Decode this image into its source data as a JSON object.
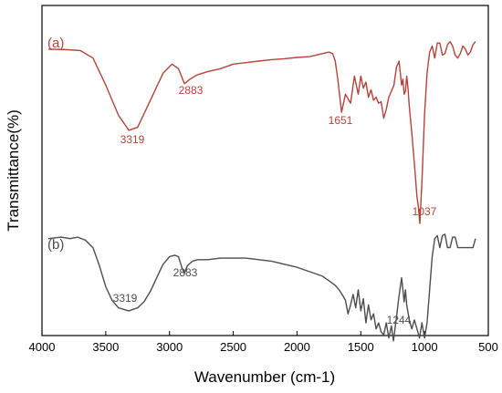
{
  "chart_data": {
    "type": "line",
    "title": "",
    "xlabel": "Wavenumber (cm-1)",
    "ylabel": "Transmittance(%)",
    "xlim": [
      4000,
      500
    ],
    "x_reversed": true,
    "x_ticks": [
      4000,
      3500,
      3000,
      2500,
      2000,
      1500,
      1000,
      500
    ],
    "y_ticks": [],
    "ylim": [
      0,
      100
    ],
    "grid": false,
    "series": [
      {
        "name": "(a)",
        "color": "#b5433a",
        "x": [
          3950,
          3800,
          3700,
          3600,
          3500,
          3400,
          3319,
          3250,
          3150,
          3050,
          2980,
          2930,
          2883,
          2840,
          2780,
          2700,
          2600,
          2500,
          2400,
          2300,
          2200,
          2100,
          2000,
          1900,
          1800,
          1750,
          1720,
          1700,
          1680,
          1651,
          1620,
          1580,
          1550,
          1520,
          1500,
          1480,
          1460,
          1440,
          1420,
          1400,
          1380,
          1360,
          1340,
          1320,
          1300,
          1280,
          1260,
          1240,
          1230,
          1220,
          1200,
          1180,
          1170,
          1160,
          1150,
          1140,
          1130,
          1120,
          1100,
          1080,
          1060,
          1050,
          1037,
          1020,
          1000,
          980,
          960,
          940,
          920,
          900,
          880,
          860,
          840,
          820,
          800,
          780,
          760,
          740,
          720,
          700,
          680,
          660,
          640,
          620,
          600
        ],
        "y": [
          94,
          93.8,
          93.5,
          91,
          82,
          72,
          67,
          68,
          77,
          86,
          89,
          87.5,
          82.5,
          84,
          85.5,
          86.5,
          87.5,
          89,
          89.5,
          90,
          90.5,
          90.8,
          91.2,
          91.5,
          92.5,
          93,
          92.5,
          90,
          84,
          73,
          79,
          76,
          85,
          79,
          85,
          81,
          83,
          78,
          80.5,
          77,
          78,
          76,
          76.5,
          71,
          74,
          78,
          80,
          82,
          85,
          88,
          90,
          82,
          84,
          79,
          80,
          85,
          81,
          75,
          66,
          56,
          45,
          42,
          36,
          50,
          72,
          86,
          93,
          95,
          91,
          96,
          96,
          92,
          92.5,
          95.5,
          96.5,
          95,
          92,
          91,
          92.5,
          95,
          94,
          92,
          93,
          95.5,
          96.5
        ]
      },
      {
        "name": "(b)",
        "color": "#4d4d4d",
        "x": [
          3950,
          3850,
          3780,
          3720,
          3660,
          3600,
          3550,
          3500,
          3450,
          3400,
          3319,
          3250,
          3200,
          3150,
          3100,
          3050,
          3000,
          2960,
          2930,
          2900,
          2883,
          2860,
          2820,
          2780,
          2700,
          2600,
          2500,
          2400,
          2300,
          2200,
          2100,
          2000,
          1900,
          1800,
          1750,
          1700,
          1670,
          1640,
          1620,
          1600,
          1580,
          1560,
          1540,
          1520,
          1500,
          1480,
          1460,
          1440,
          1420,
          1400,
          1380,
          1360,
          1340,
          1320,
          1300,
          1280,
          1270,
          1260,
          1244,
          1220,
          1200,
          1180,
          1160,
          1150,
          1140,
          1120,
          1100,
          1080,
          1060,
          1040,
          1020,
          1000,
          980,
          960,
          940,
          920,
          900,
          880,
          860,
          840,
          820,
          800,
          780,
          760,
          740,
          720,
          700,
          680,
          660,
          640,
          620,
          600
        ],
        "y": [
          31,
          31.5,
          31,
          31.5,
          30.5,
          28,
          22,
          15,
          10.5,
          8,
          7,
          8,
          10,
          13.5,
          18,
          22.5,
          25,
          25.5,
          25,
          21,
          19.5,
          22,
          23.5,
          24,
          24,
          24.5,
          24.5,
          24.5,
          24,
          23.5,
          22.5,
          21.5,
          20,
          18.5,
          17,
          15.5,
          14,
          12,
          10.5,
          6,
          9,
          12.5,
          8,
          14,
          7,
          11,
          3,
          9,
          4,
          6,
          1,
          3,
          0,
          -1,
          3,
          -2,
          0,
          2,
          -3,
          5,
          12,
          18,
          10,
          14,
          9,
          4,
          1,
          4,
          1,
          -2,
          3,
          -2,
          3,
          14,
          25,
          31,
          32,
          28,
          32,
          32.5,
          28,
          28,
          31.5,
          31.5,
          28,
          28,
          28,
          28,
          28,
          28,
          28,
          31
        ]
      }
    ],
    "annotations": [
      {
        "text": "(a)",
        "series": 0
      },
      {
        "text": "(b)",
        "series": 1
      },
      {
        "text": "3319",
        "series": 0
      },
      {
        "text": "2883",
        "series": 0
      },
      {
        "text": "1651",
        "series": 0
      },
      {
        "text": "1037",
        "series": 0
      },
      {
        "text": "3319",
        "series": 1
      },
      {
        "text": "2883",
        "series": 1
      },
      {
        "text": "1244",
        "series": 1
      }
    ]
  }
}
